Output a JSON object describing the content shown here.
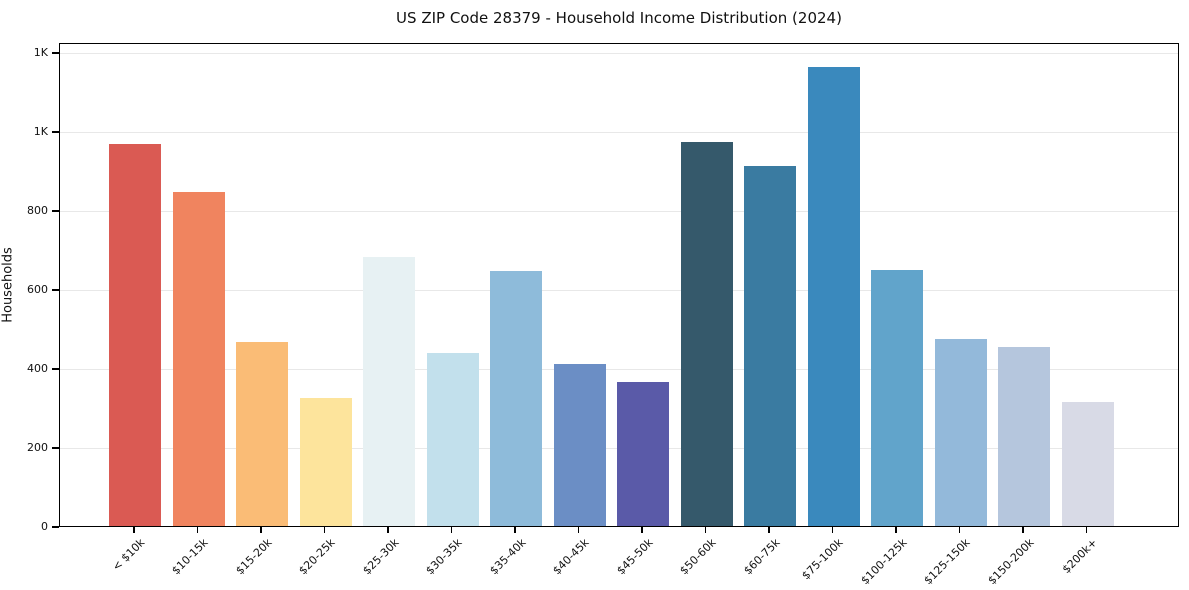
{
  "chart_data": {
    "type": "bar",
    "title": "US ZIP Code 28379 - Household Income Distribution (2024)",
    "xlabel": "",
    "ylabel": "Households",
    "categories": [
      "< $10k",
      "$10-15k",
      "$15-20k",
      "$20-25k",
      "$25-30k",
      "$30-35k",
      "$35-40k",
      "$40-45k",
      "$45-50k",
      "$50-60k",
      "$60-75k",
      "$75-100k",
      "$100-125k",
      "$125-150k",
      "$150-200k",
      "$200k+"
    ],
    "values": [
      968,
      846,
      467,
      325,
      680,
      437,
      646,
      410,
      365,
      972,
      912,
      1163,
      647,
      474,
      454,
      313
    ],
    "bar_colors": [
      "#da5a53",
      "#f0845f",
      "#fabc76",
      "#fde49c",
      "#e7f1f3",
      "#c2e0ec",
      "#8ebbda",
      "#6b8ec5",
      "#5a5aa8",
      "#35596b",
      "#3a7ba1",
      "#3a89bd",
      "#61a4cb",
      "#93b9da",
      "#b5c6dd",
      "#d8dae6"
    ],
    "ylim": [
      0,
      1225
    ],
    "yticks": [
      {
        "value": 0,
        "label": "0"
      },
      {
        "value": 200,
        "label": "200"
      },
      {
        "value": 400,
        "label": "400"
      },
      {
        "value": 600,
        "label": "600"
      },
      {
        "value": 800,
        "label": "800"
      },
      {
        "value": 1000,
        "label": "1K"
      },
      {
        "value": 1200,
        "label": "1K"
      }
    ],
    "grid": "horizontal-only",
    "legend": "none",
    "x_tick_rotation_deg": 45
  },
  "style": {
    "grid_color": "#e8e8e8",
    "spine_color": "#000000",
    "text_color": "#111111",
    "background_color": "#ffffff"
  }
}
